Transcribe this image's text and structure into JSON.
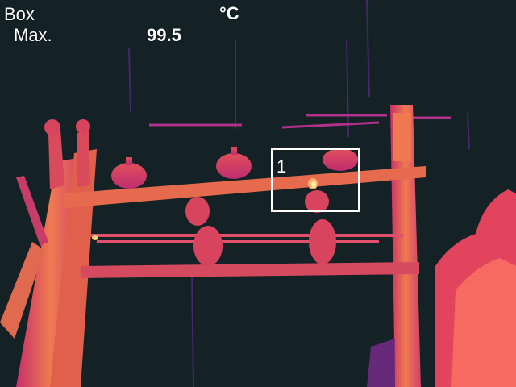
{
  "overlay": {
    "box_label": "Box",
    "unit": "°C",
    "max_label": "Max.",
    "max_value": "99.5"
  },
  "roi": {
    "number": "1"
  },
  "colors": {
    "background": "#142226",
    "structure_hot": "#e8624c",
    "structure_warm": "#c8306a",
    "hotspot": "#fff2a0",
    "overlay_text": "#ffffff"
  }
}
